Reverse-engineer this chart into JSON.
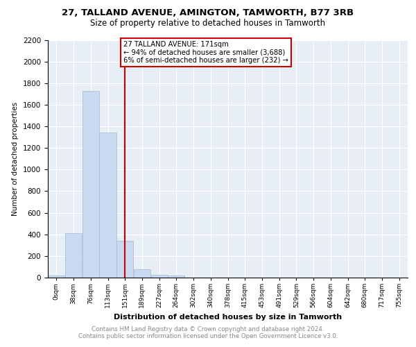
{
  "title1": "27, TALLAND AVENUE, AMINGTON, TAMWORTH, B77 3RB",
  "title2": "Size of property relative to detached houses in Tamworth",
  "xlabel": "Distribution of detached houses by size in Tamworth",
  "ylabel": "Number of detached properties",
  "bin_labels": [
    "0sqm",
    "38sqm",
    "76sqm",
    "113sqm",
    "151sqm",
    "189sqm",
    "227sqm",
    "264sqm",
    "302sqm",
    "340sqm",
    "378sqm",
    "415sqm",
    "453sqm",
    "491sqm",
    "529sqm",
    "566sqm",
    "604sqm",
    "642sqm",
    "680sqm",
    "717sqm",
    "755sqm"
  ],
  "bar_heights": [
    20,
    410,
    1730,
    1340,
    340,
    75,
    25,
    20,
    0,
    0,
    0,
    0,
    0,
    0,
    0,
    0,
    0,
    0,
    0,
    0,
    0
  ],
  "bar_color": "#c9d9f0",
  "bar_edgecolor": "#a0b8d8",
  "vline_x": 171,
  "vline_color": "#cc0000",
  "annotation_text": "27 TALLAND AVENUE: 171sqm\n← 94% of detached houses are smaller (3,688)\n6% of semi-detached houses are larger (232) →",
  "annotation_box_color": "#ffffff",
  "annotation_box_edgecolor": "#cc0000",
  "ylim": [
    0,
    2200
  ],
  "yticks": [
    0,
    200,
    400,
    600,
    800,
    1000,
    1200,
    1400,
    1600,
    1800,
    2000,
    2200
  ],
  "footer_line1": "Contains HM Land Registry data © Crown copyright and database right 2024.",
  "footer_line2": "Contains public sector information licensed under the Open Government Licence v3.0.",
  "bg_color": "#e8eef5",
  "bin_width": 38
}
